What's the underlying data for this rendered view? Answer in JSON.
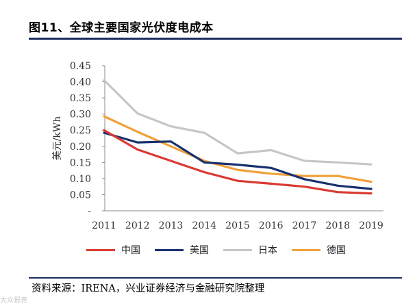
{
  "header": {
    "title": "图11、全球主要国家光伏度电成本"
  },
  "source": "资料来源：IRENA，兴业证券经济与金融研究院整理",
  "watermark": "大众报表",
  "colors": {
    "rule": "#1c2d5e"
  },
  "chart_data": {
    "type": "line",
    "title": "",
    "ylabel": "美元/kWh",
    "xlabel": "",
    "x": [
      "2011",
      "2012",
      "2013",
      "2014",
      "2015",
      "2016",
      "2017",
      "2018",
      "2019"
    ],
    "ylim": [
      0,
      0.45
    ],
    "yticks": [
      "-",
      "0.05",
      "0.10",
      "0.15",
      "0.20",
      "0.25",
      "0.30",
      "0.35",
      "0.40",
      "0.45"
    ],
    "grid": false,
    "legend_position": "bottom",
    "series": [
      {
        "name": "中国",
        "color": "#d93a32",
        "values": [
          0.25,
          0.19,
          0.155,
          0.12,
          0.093,
          0.084,
          0.075,
          0.058,
          0.054
        ]
      },
      {
        "name": "美国",
        "color": "#17306e",
        "values": [
          0.242,
          0.212,
          0.215,
          0.15,
          0.143,
          0.133,
          0.098,
          0.078,
          0.068
        ]
      },
      {
        "name": "日本",
        "color": "#c6c6c6",
        "values": [
          0.405,
          0.302,
          0.262,
          0.242,
          0.178,
          0.188,
          0.155,
          0.15,
          0.144
        ]
      },
      {
        "name": "德国",
        "color": "#f0a03a",
        "values": [
          0.293,
          0.245,
          0.2,
          0.155,
          0.127,
          0.115,
          0.108,
          0.108,
          0.09
        ]
      }
    ]
  }
}
